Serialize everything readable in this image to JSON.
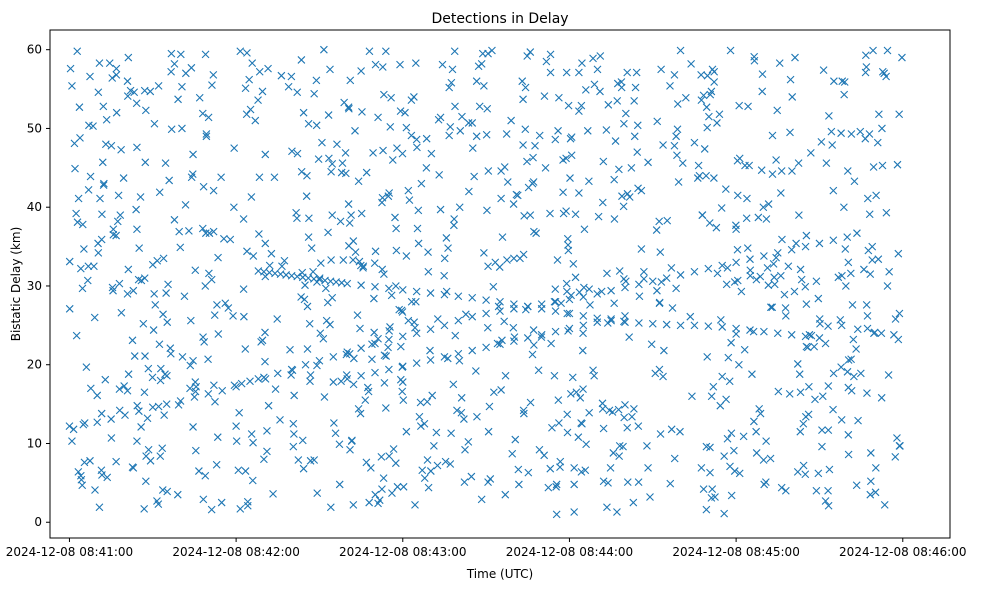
{
  "chart_data": {
    "type": "scatter",
    "title": "Detections in Delay",
    "xlabel": "Time (UTC)",
    "ylabel": "Bistatic Delay (km)",
    "marker": "x",
    "color": "#1f77b4",
    "grid": false,
    "xlim": [
      -7,
      317
    ],
    "ylim": [
      -2,
      62.5
    ],
    "x_unit": "seconds after 2024-12-08 08:41:00 UTC",
    "x_ticks": [
      0,
      60,
      120,
      180,
      240,
      300
    ],
    "x_tick_labels": [
      "2024-12-08 08:41:00",
      "2024-12-08 08:42:00",
      "2024-12-08 08:43:00",
      "2024-12-08 08:44:00",
      "2024-12-08 08:45:00",
      "2024-12-08 08:46:00"
    ],
    "y_ticks": [
      0,
      10,
      20,
      30,
      40,
      50,
      60
    ],
    "y_tick_labels": [
      "0",
      "10",
      "20",
      "30",
      "40",
      "50",
      "60"
    ],
    "tracks": [
      {
        "x": [
          0,
          5,
          10,
          15,
          20,
          25,
          30,
          35,
          40,
          45,
          50,
          55,
          60,
          62,
          65,
          68,
          70,
          75,
          80,
          85,
          90,
          95,
          100,
          105,
          110,
          115,
          120,
          125,
          130,
          135,
          140,
          145,
          150,
          155,
          160,
          165,
          170,
          175,
          180,
          185,
          190,
          195,
          200,
          205,
          210,
          215,
          220,
          225,
          230,
          235,
          240,
          245,
          250,
          255,
          260,
          265,
          270,
          275,
          280
        ],
        "y": [
          12.2,
          12.4,
          12.7,
          13.1,
          13.6,
          14.1,
          14.6,
          15.0,
          15.4,
          15.9,
          16.3,
          16.7,
          17.2,
          17.6,
          17.9,
          18.2,
          18.4,
          18.9,
          19.4,
          20.0,
          20.5,
          21.0,
          21.6,
          22.1,
          22.7,
          23.2,
          23.6,
          24.0,
          24.5,
          25.0,
          25.6,
          26.1,
          26.5,
          26.8,
          27.1,
          27.4,
          27.7,
          28.0,
          28.3,
          28.6,
          29.0,
          29.4,
          29.8,
          30.2,
          30.6,
          31.0,
          31.4,
          31.8,
          32.2,
          32.6,
          33.0,
          33.4,
          33.8,
          34.2,
          34.6,
          35.0,
          35.4,
          35.8,
          36.2
        ]
      },
      {
        "x": [
          68,
          70,
          72,
          74,
          76,
          78,
          80,
          82,
          84,
          86,
          88,
          90,
          92,
          94,
          96,
          98,
          100,
          105,
          110,
          115,
          120,
          125,
          130,
          135,
          140,
          145,
          150,
          155,
          160,
          165,
          170,
          175,
          180,
          185,
          190,
          195,
          200,
          205,
          210,
          215,
          220,
          225,
          230,
          235,
          240,
          245,
          250,
          255,
          260,
          265,
          270
        ],
        "y": [
          31.9,
          31.8,
          31.7,
          31.6,
          31.5,
          31.4,
          31.3,
          31.2,
          31.1,
          31.0,
          30.9,
          30.8,
          30.7,
          30.6,
          30.5,
          30.4,
          30.3,
          30.1,
          29.9,
          29.7,
          29.5,
          29.3,
          29.1,
          28.9,
          28.7,
          28.5,
          28.2,
          28.0,
          27.7,
          27.4,
          27.1,
          26.8,
          26.5,
          26.2,
          25.9,
          25.6,
          25.4,
          25.3,
          25.2,
          25.1,
          25.0,
          25.0,
          24.9,
          24.8,
          24.6,
          24.4,
          24.2,
          24.0,
          23.8,
          23.6,
          23.4
        ]
      },
      {
        "x": [
          95,
          100,
          105,
          110,
          115,
          120,
          125,
          130,
          135,
          140,
          145,
          150,
          155,
          160,
          165,
          170,
          175,
          180,
          185,
          190,
          195,
          200
        ],
        "y": [
          17.8,
          18.2,
          18.6,
          19.0,
          19.4,
          19.8,
          20.2,
          20.6,
          21.0,
          21.4,
          21.8,
          22.2,
          22.6,
          23.0,
          23.4,
          23.8,
          24.2,
          24.6,
          25.0,
          25.4,
          25.8,
          26.2
        ]
      }
    ]
  }
}
